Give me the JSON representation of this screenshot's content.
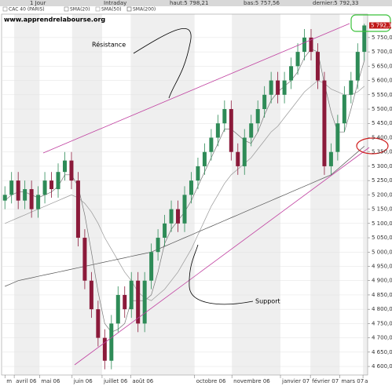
{
  "chart_data": {
    "type": "candlestick",
    "header": {
      "period": "1 Jour",
      "mode": "Intraday",
      "high": "haut:5 798,21",
      "low": "bas:5 757,56",
      "last": "dernier:5 792,33"
    },
    "instrument": "CAC 40 (PARIS)",
    "watermark": "www.apprendrelabourse.org",
    "annotations": {
      "resistance": "Résistance",
      "support": "Support"
    },
    "up_color": "#2e8b57",
    "down_color": "#8b1a3a",
    "last_label": "5 792,33",
    "categories": [
      null,
      null,
      null,
      null,
      null,
      null,
      null,
      null,
      null,
      null,
      null,
      null,
      null,
      null,
      null,
      null,
      null,
      null,
      null,
      null,
      null,
      null,
      null,
      null,
      null,
      null,
      null,
      null,
      null,
      null,
      null,
      null,
      null,
      null,
      null,
      null,
      null,
      null,
      null,
      null,
      null,
      null,
      null,
      null,
      null,
      null,
      null,
      null,
      null,
      null,
      null,
      null,
      null,
      null,
      null
    ],
    "open": [
      5180,
      5200,
      5250,
      5180,
      5220,
      5150,
      5200,
      5250,
      5220,
      5280,
      5320,
      5250,
      5050,
      4900,
      4800,
      4700,
      4620,
      4750,
      4850,
      4800,
      4900,
      4750,
      4900,
      5000,
      5050,
      5100,
      5150,
      5100,
      5200,
      5250,
      5300,
      5350,
      5400,
      5450,
      5500,
      5350,
      5300,
      5400,
      5450,
      5500,
      5550,
      5600,
      5550,
      5600,
      5650,
      5700,
      5750,
      5700,
      5600,
      5300,
      5350,
      5450,
      5550,
      5600,
      5700
    ],
    "high": [
      5230,
      5280,
      5280,
      5250,
      5250,
      5230,
      5280,
      5280,
      5310,
      5350,
      5350,
      5280,
      5080,
      4930,
      4830,
      4730,
      4780,
      4880,
      4880,
      4930,
      4930,
      4930,
      5030,
      5080,
      5130,
      5180,
      5180,
      5230,
      5280,
      5330,
      5380,
      5430,
      5480,
      5530,
      5530,
      5380,
      5430,
      5480,
      5530,
      5580,
      5630,
      5630,
      5630,
      5680,
      5730,
      5780,
      5780,
      5730,
      5630,
      5380,
      5480,
      5580,
      5630,
      5730,
      5798.21
    ],
    "low": [
      5150,
      5170,
      5150,
      5150,
      5120,
      5120,
      5170,
      5190,
      5190,
      5250,
      5220,
      5020,
      4870,
      4770,
      4670,
      4590,
      4590,
      4720,
      4770,
      4770,
      4720,
      4720,
      4870,
      4970,
      5020,
      5070,
      5070,
      5070,
      5170,
      5220,
      5270,
      5320,
      5370,
      5420,
      5320,
      5270,
      5270,
      5370,
      5420,
      5470,
      5520,
      5520,
      5520,
      5570,
      5620,
      5670,
      5670,
      5570,
      5270,
      5270,
      5320,
      5420,
      5520,
      5570,
      5670
    ],
    "close": [
      5200,
      5250,
      5180,
      5220,
      5150,
      5200,
      5250,
      5220,
      5280,
      5320,
      5250,
      5050,
      4900,
      4800,
      4700,
      4620,
      4750,
      4850,
      4800,
      4900,
      4750,
      4900,
      5000,
      5050,
      5100,
      5150,
      5100,
      5200,
      5250,
      5300,
      5350,
      5400,
      5450,
      5500,
      5350,
      5300,
      5400,
      5450,
      5500,
      5550,
      5600,
      5550,
      5600,
      5650,
      5700,
      5750,
      5700,
      5600,
      5300,
      5350,
      5450,
      5550,
      5600,
      5700,
      5792.33
    ],
    "series": [
      {
        "name": "SMA(20)",
        "color": "#777777",
        "values": [
          5180,
          5200,
          5210,
          5210,
          5200,
          5190,
          5200,
          5210,
          5230,
          5270,
          5270,
          5230,
          5130,
          5000,
          4860,
          4750,
          4720,
          4730,
          4750,
          4830,
          4830,
          4830,
          4850,
          4930,
          5030,
          5080,
          5110,
          5140,
          5180,
          5230,
          5280,
          5330,
          5380,
          5430,
          5430,
          5410,
          5390,
          5380,
          5420,
          5480,
          5530,
          5560,
          5580,
          5600,
          5630,
          5680,
          5710,
          5700,
          5590,
          5490,
          5420,
          5420,
          5500,
          5590,
          5670
        ]
      },
      {
        "name": "SMA(50)",
        "color": "#999999",
        "values": [
          5100,
          5110,
          5120,
          5130,
          5140,
          5150,
          5160,
          5170,
          5180,
          5190,
          5200,
          5190,
          5170,
          5140,
          5100,
          5050,
          5010,
          4970,
          4930,
          4900,
          4860,
          4840,
          4830,
          4850,
          4870,
          4900,
          4930,
          4970,
          5010,
          5060,
          5110,
          5160,
          5200,
          5240,
          5270,
          5290,
          5310,
          5330,
          5360,
          5390,
          5420,
          5440,
          5470,
          5500,
          5530,
          5560,
          5580,
          5600,
          5590,
          5570,
          5560,
          5550,
          5550,
          5560,
          5580
        ]
      },
      {
        "name": "SMA(200)",
        "color": "#555555",
        "values": [
          4880,
          4890,
          4900,
          4905,
          4910,
          4915,
          4920,
          4925,
          4930,
          4935,
          4940,
          4945,
          4950,
          4955,
          4960,
          4965,
          4970,
          4975,
          4980,
          4985,
          4990,
          4995,
          5000,
          5010,
          5020,
          5030,
          5040,
          5050,
          5060,
          5070,
          5080,
          5090,
          5100,
          5110,
          5120,
          5130,
          5140,
          5150,
          5160,
          5170,
          5180,
          5190,
          5200,
          5210,
          5220,
          5230,
          5240,
          5250,
          5260,
          5270,
          5290,
          5310,
          5330,
          5350,
          5370
        ]
      }
    ],
    "ylim": [
      4570,
      5832
    ],
    "yticks": [
      {
        "value": 4600,
        "label": "4 600,00"
      },
      {
        "value": 4650,
        "label": "4 650,00"
      },
      {
        "value": 4700,
        "label": "4 700,00"
      },
      {
        "value": 4750,
        "label": "4 750,00"
      },
      {
        "value": 4800,
        "label": "4 800,00"
      },
      {
        "value": 4850,
        "label": "4 850,00"
      },
      {
        "value": 4900,
        "label": "4 900,00"
      },
      {
        "value": 4950,
        "label": "4 950,00"
      },
      {
        "value": 5000,
        "label": "5 000,00"
      },
      {
        "value": 5050,
        "label": "5 050,00"
      },
      {
        "value": 5100,
        "label": "5 100,00"
      },
      {
        "value": 5150,
        "label": "5 150,00"
      },
      {
        "value": 5200,
        "label": "5 200,00"
      },
      {
        "value": 5250,
        "label": "5 250,00"
      },
      {
        "value": 5300,
        "label": "5 300,00"
      },
      {
        "value": 5350,
        "label": "5 350,00"
      },
      {
        "value": 5400,
        "label": "5 400,00"
      },
      {
        "value": 5450,
        "label": "5 450,00"
      },
      {
        "value": 5500,
        "label": "5 500,00"
      },
      {
        "value": 5550,
        "label": "5 550,00"
      },
      {
        "value": 5600,
        "label": "5 600,00"
      },
      {
        "value": 5650,
        "label": "5 650,00"
      },
      {
        "value": 5700,
        "label": "5 700,00"
      },
      {
        "value": 5750,
        "label": "5 750,00"
      }
    ],
    "xticks": [
      {
        "value": 0,
        "label": "m"
      },
      {
        "value": 1.4,
        "label": "avril 06"
      },
      {
        "value": 5.2,
        "label": "mai 06"
      },
      {
        "value": 10.1,
        "label": "juin 06"
      },
      {
        "value": 14.6,
        "label": "juillet 06"
      },
      {
        "value": 18.9,
        "label": "août 06"
      },
      {
        "value": 28.5,
        "label": "octobre 06"
      },
      {
        "value": 34.1,
        "label": "novembre 06"
      },
      {
        "value": 41.4,
        "label": "janvier 07"
      },
      {
        "value": 45.9,
        "label": "février 07"
      },
      {
        "value": 50.3,
        "label": "mars 07"
      },
      {
        "value": 53.8,
        "label": "a"
      }
    ],
    "grid": true
  }
}
